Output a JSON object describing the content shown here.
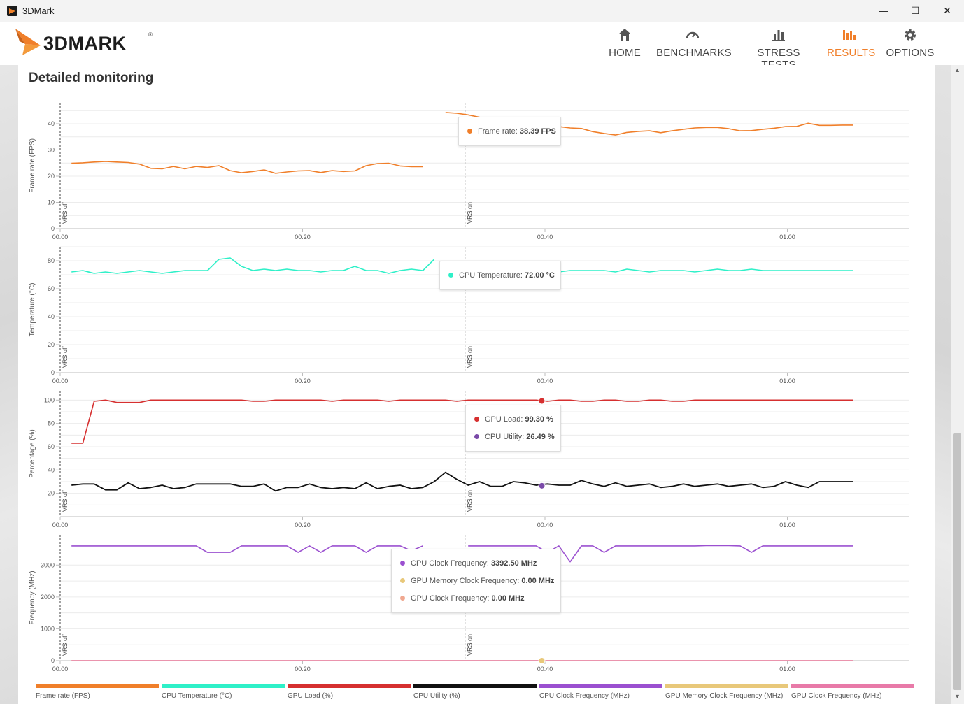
{
  "window": {
    "title": "3DMark",
    "minimize": "—",
    "maximize": "☐",
    "close": "✕"
  },
  "brand": {
    "logo_text": "3DMARK",
    "registered": "®",
    "accent": "#f07f2a"
  },
  "nav": [
    {
      "label": "HOME",
      "icon": "home-icon",
      "active": false
    },
    {
      "label": "BENCHMARKS",
      "icon": "gauge-icon",
      "active": false
    },
    {
      "label": "STRESS TESTS",
      "icon": "bar-chart-icon",
      "active": false
    },
    {
      "label": "RESULTS",
      "icon": "results-icon",
      "active": true
    },
    {
      "label": "OPTIONS",
      "icon": "gear-icon",
      "active": false
    }
  ],
  "section": {
    "title": "Detailed monitoring"
  },
  "markers": [
    {
      "label": "VRS off",
      "time": 0
    },
    {
      "label": "VRS on",
      "time": 33.4
    }
  ],
  "cursor_time": 42.5,
  "x_ticks": [
    "00:00",
    "00:20",
    "00:40",
    "01:00"
  ],
  "tooltips": {
    "fps": [
      {
        "label": "Frame rate: ",
        "value": "38.39 FPS",
        "color": "#f07f2a"
      }
    ],
    "temp": [
      {
        "label": "CPU Temperature: ",
        "value": "72.00 °C",
        "color": "#2ef0c8"
      }
    ],
    "pct": [
      {
        "label": "GPU Load: ",
        "value": "99.30 %",
        "color": "#d63030"
      },
      {
        "label": "CPU Utility: ",
        "value": "26.49 %",
        "color": "#7a4aa8"
      }
    ],
    "freq": [
      {
        "label": "CPU Clock Frequency: ",
        "value": "3392.50 MHz",
        "color": "#9b50d0"
      },
      {
        "label": "GPU Memory Clock Frequency: ",
        "value": "0.00 MHz",
        "color": "#e8c87a"
      },
      {
        "label": "GPU Clock Frequency: ",
        "value": "0.00 MHz",
        "color": "#f0a890"
      }
    ]
  },
  "legend": [
    {
      "label": "Frame rate (FPS)",
      "color": "#f07f2a"
    },
    {
      "label": "CPU Temperature (°C)",
      "color": "#2ef0c8"
    },
    {
      "label": "GPU Load (%)",
      "color": "#d63030"
    },
    {
      "label": "CPU Utility (%)",
      "color": "#111111"
    },
    {
      "label": "CPU Clock Frequency (MHz)",
      "color": "#9b50d0"
    },
    {
      "label": "GPU Memory Clock Frequency (MHz)",
      "color": "#e8c87a"
    },
    {
      "label": "GPU Clock Frequency (MHz)",
      "color": "#e87aa8"
    }
  ],
  "chart_data": [
    {
      "type": "line",
      "ylabel": "Frame rate (FPS)",
      "ylim": [
        0,
        48
      ],
      "yticks": [
        0,
        10,
        20,
        30,
        40
      ],
      "xlim": [
        0,
        70
      ],
      "grid": true,
      "series": [
        {
          "name": "Frame rate (FPS)",
          "color": "#f07f2a",
          "segments": [
            {
              "x": [
                1,
                2,
                3,
                4,
                5,
                6,
                7,
                8,
                9,
                10,
                11,
                12,
                13,
                14,
                15,
                16,
                17,
                18,
                19,
                20,
                21,
                22,
                23,
                24,
                25,
                26,
                27,
                28,
                29,
                30,
                31,
                32
              ],
              "y": [
                24.9,
                25.1,
                25.4,
                25.6,
                25.4,
                25.2,
                24.6,
                23.0,
                22.8,
                23.7,
                22.8,
                23.7,
                23.3,
                24.0,
                22.1,
                21.3,
                21.8,
                22.4,
                21.1,
                21.6,
                22.0,
                22.1,
                21.4,
                22.1,
                21.8,
                22.0,
                24.0,
                24.8,
                24.9,
                23.9,
                23.6,
                23.6
              ]
            },
            {
              "x": [
                34,
                35,
                36,
                37,
                38,
                39,
                40,
                41,
                42,
                43,
                44,
                45,
                46,
                47,
                48,
                49,
                50,
                51,
                52,
                53,
                54,
                55,
                56,
                57,
                58,
                59,
                60,
                61,
                62,
                63,
                64,
                65,
                66,
                67,
                68,
                69,
                70
              ],
              "y": [
                44.3,
                44.0,
                43.4,
                42.5,
                41.0,
                39.9,
                39.2,
                38.7,
                38.6,
                38.5,
                38.9,
                38.4,
                38.2,
                37.0,
                36.3,
                35.7,
                36.7,
                37.1,
                37.3,
                36.6,
                37.3,
                37.9,
                38.4,
                38.6,
                38.6,
                38.1,
                37.3,
                37.4,
                37.9,
                38.3,
                38.9,
                39.0,
                40.2,
                39.4,
                39.4,
                39.5,
                39.5
              ]
            }
          ]
        }
      ]
    },
    {
      "type": "line",
      "ylabel": "Temperature (°C)",
      "ylim": [
        0,
        90
      ],
      "yticks": [
        0,
        20,
        40,
        60,
        80
      ],
      "xlim": [
        0,
        70
      ],
      "grid": true,
      "series": [
        {
          "name": "CPU Temperature (°C)",
          "color": "#2ef0c8",
          "segments": [
            {
              "x": [
                1,
                2,
                3,
                4,
                5,
                6,
                7,
                8,
                9,
                10,
                11,
                12,
                13,
                14,
                15,
                16,
                17,
                18,
                19,
                20,
                21,
                22,
                23,
                24,
                25,
                26,
                27,
                28,
                29,
                30,
                31,
                32,
                33
              ],
              "y": [
                72,
                73,
                71,
                72,
                71,
                72,
                73,
                72,
                71,
                72,
                73,
                73,
                73,
                81,
                82,
                76,
                73,
                74,
                73,
                74,
                73,
                73,
                72,
                73,
                73,
                76,
                73,
                73,
                71,
                73,
                74,
                73,
                81
              ]
            },
            {
              "x": [
                34,
                35,
                36,
                37,
                38,
                39,
                40,
                41,
                42,
                43,
                44,
                45,
                46,
                47,
                48,
                49,
                50,
                51,
                52,
                53,
                54,
                55,
                56,
                57,
                58,
                59,
                60,
                61,
                62,
                63,
                64,
                65,
                66,
                67,
                68,
                69,
                70
              ],
              "y": [
                72,
                72,
                72,
                72,
                72,
                72,
                72,
                72,
                72,
                72,
                72,
                73,
                73,
                73,
                73,
                72,
                74,
                73,
                72,
                73,
                73,
                73,
                72,
                73,
                74,
                73,
                73,
                74,
                73,
                73,
                73,
                73,
                73,
                73,
                73,
                73,
                73
              ]
            }
          ]
        }
      ]
    },
    {
      "type": "line",
      "ylabel": "Percentage (%)",
      "ylim": [
        0,
        108
      ],
      "yticks": [
        20,
        40,
        60,
        80,
        100
      ],
      "xlim": [
        0,
        70
      ],
      "grid": true,
      "series": [
        {
          "name": "GPU Load (%)",
          "color": "#d63030",
          "segments": [
            {
              "x": [
                1,
                2,
                3,
                4,
                5,
                6,
                7,
                8,
                9,
                10,
                11,
                12,
                13,
                14,
                15,
                16,
                17,
                18,
                19,
                20,
                21,
                22,
                23,
                24,
                25,
                26,
                27,
                28,
                29,
                30,
                31,
                32,
                33,
                34,
                35,
                36,
                37,
                38,
                39,
                40,
                41,
                42,
                43,
                44,
                45,
                46,
                47,
                48,
                49,
                50,
                51,
                52,
                53,
                54,
                55,
                56,
                57,
                58,
                59,
                60,
                61,
                62,
                63,
                64,
                65,
                66,
                67,
                68,
                69,
                70
              ],
              "y": [
                63,
                63,
                99,
                100,
                98,
                98,
                98,
                100,
                100,
                100,
                100,
                100,
                100,
                100,
                100,
                100,
                99,
                99,
                100,
                100,
                100,
                100,
                100,
                99,
                100,
                100,
                100,
                100,
                99,
                100,
                100,
                100,
                100,
                100,
                99,
                100,
                100,
                100,
                100,
                100,
                100,
                100,
                99,
                100,
                100,
                99,
                99,
                100,
                100,
                99,
                99,
                100,
                100,
                99,
                99,
                100,
                100,
                100,
                100,
                100,
                100,
                100,
                100,
                100,
                100,
                100,
                100,
                100,
                100,
                100
              ]
            }
          ]
        },
        {
          "name": "CPU Utility (%)",
          "color": "#111111",
          "segments": [
            {
              "x": [
                1,
                2,
                3,
                4,
                5,
                6,
                7,
                8,
                9,
                10,
                11,
                12,
                13,
                14,
                15,
                16,
                17,
                18,
                19,
                20,
                21,
                22,
                23,
                24,
                25,
                26,
                27,
                28,
                29,
                30,
                31,
                32,
                33,
                34,
                35,
                36,
                37,
                38,
                39,
                40,
                41,
                42,
                43,
                44,
                45,
                46,
                47,
                48,
                49,
                50,
                51,
                52,
                53,
                54,
                55,
                56,
                57,
                58,
                59,
                60,
                61,
                62,
                63,
                64,
                65,
                66,
                67,
                68,
                69,
                70
              ],
              "y": [
                27,
                28,
                28,
                23,
                23,
                29,
                24,
                25,
                27,
                24,
                25,
                28,
                28,
                28,
                28,
                26,
                26,
                28,
                22,
                25,
                25,
                28,
                25,
                24,
                25,
                24,
                29,
                24,
                26,
                27,
                24,
                25,
                30,
                38,
                32,
                27,
                30,
                26,
                26,
                30,
                29,
                27,
                28,
                27,
                27,
                31,
                28,
                26,
                29,
                26,
                27,
                28,
                25,
                26,
                28,
                26,
                27,
                28,
                26,
                27,
                28,
                25,
                26,
                30,
                27,
                25,
                30,
                30,
                30,
                30
              ]
            }
          ]
        }
      ]
    },
    {
      "type": "line",
      "ylabel": "Frequency (MHz)",
      "ylim": [
        0,
        3950
      ],
      "yticks": [
        0,
        1000,
        2000,
        3000
      ],
      "xlim": [
        0,
        70
      ],
      "grid": true,
      "series": [
        {
          "name": "CPU Clock Frequency (MHz)",
          "color": "#9b50d0",
          "segments": [
            {
              "x": [
                1,
                2,
                3,
                4,
                5,
                6,
                7,
                8,
                9,
                10,
                11,
                12,
                13,
                14,
                15,
                16,
                17,
                18,
                19,
                20,
                21,
                22,
                23,
                24,
                25,
                26,
                27,
                28,
                29,
                30,
                31,
                32
              ],
              "y": [
                3600,
                3600,
                3600,
                3600,
                3600,
                3600,
                3600,
                3600,
                3600,
                3600,
                3600,
                3600,
                3400,
                3400,
                3400,
                3600,
                3600,
                3600,
                3600,
                3600,
                3400,
                3600,
                3400,
                3600,
                3600,
                3600,
                3400,
                3600,
                3600,
                3600,
                3450,
                3600
              ]
            },
            {
              "x": [
                36,
                37,
                38,
                39,
                40,
                41,
                42,
                43,
                44,
                45,
                46,
                47,
                48,
                49,
                50,
                51,
                52,
                53,
                54,
                55,
                56,
                57,
                58,
                59,
                60,
                61,
                62,
                63,
                64,
                65,
                66,
                67,
                68,
                69,
                70
              ],
              "y": [
                3600,
                3600,
                3600,
                3600,
                3600,
                3600,
                3600,
                3400,
                3600,
                3100,
                3600,
                3600,
                3400,
                3600,
                3600,
                3600,
                3600,
                3600,
                3600,
                3600,
                3600,
                3610,
                3610,
                3610,
                3600,
                3400,
                3600,
                3600,
                3600,
                3600,
                3600,
                3600,
                3600,
                3600,
                3600
              ]
            }
          ]
        },
        {
          "name": "GPU Memory Clock Frequency (MHz)",
          "color": "#e8c87a",
          "segments": [
            {
              "x": [
                1,
                70
              ],
              "y": [
                0,
                0
              ]
            }
          ]
        },
        {
          "name": "GPU Clock Frequency (MHz)",
          "color": "#e87aa8",
          "segments": [
            {
              "x": [
                1,
                70
              ],
              "y": [
                0,
                0
              ]
            }
          ]
        }
      ]
    }
  ]
}
